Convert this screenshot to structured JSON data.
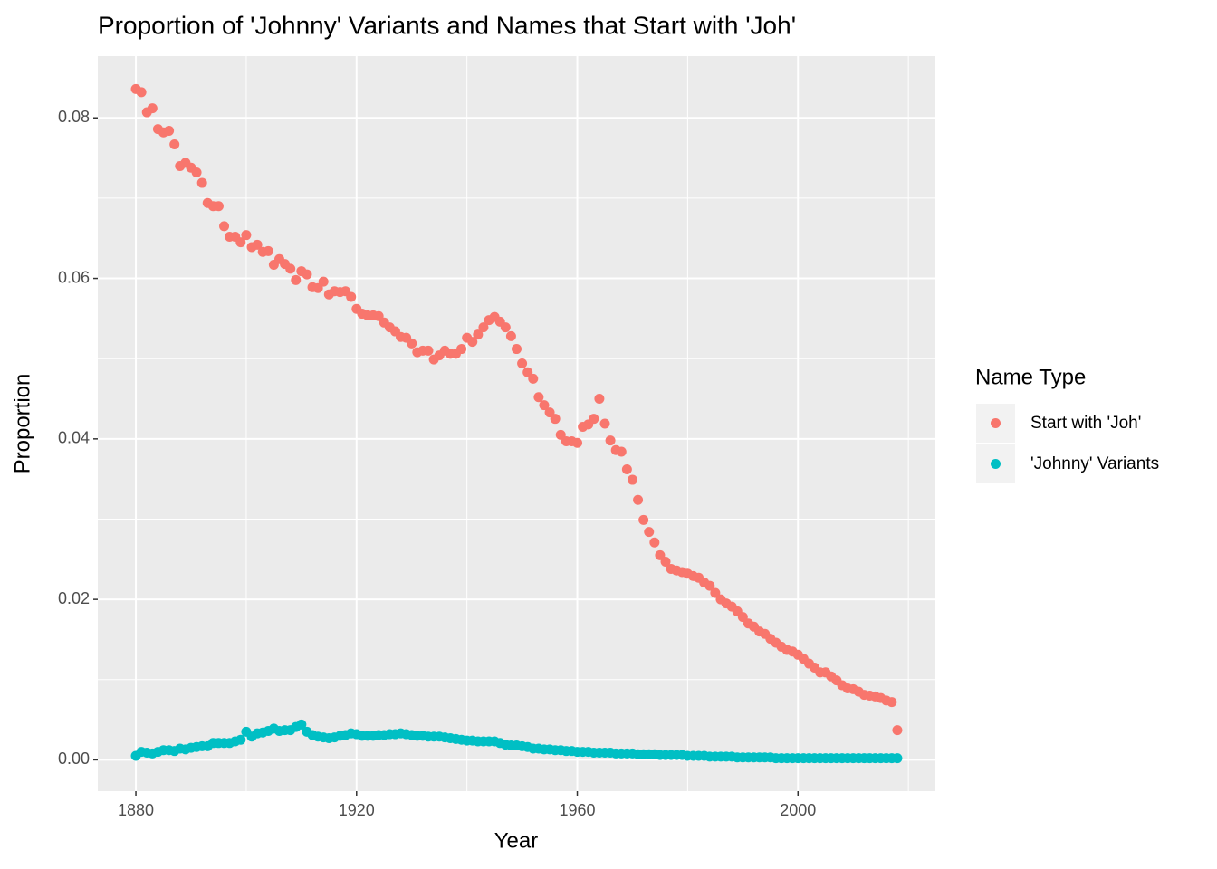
{
  "chart_data": {
    "type": "scatter",
    "title": "Proportion of 'Johnny' Variants and Names that Start with 'Joh'",
    "x_label": "Year",
    "y_label": "Proportion",
    "legend_title": "Name Type",
    "legend_position": "right",
    "grid": true,
    "xlim": [
      1873.1,
      2024.9
    ],
    "ylim": [
      -0.0039,
      0.0877
    ],
    "xticks": [
      1880,
      1920,
      1960,
      2000
    ],
    "minor_xticks": [
      1900,
      1940,
      1980,
      2020
    ],
    "yticks": [
      {
        "value": 0,
        "label": "0.00"
      },
      {
        "value": 0.02,
        "label": "0.02"
      },
      {
        "value": 0.04,
        "label": "0.04"
      },
      {
        "value": 0.06,
        "label": "0.06"
      },
      {
        "value": 0.08,
        "label": "0.08"
      }
    ],
    "minor_yticks": [
      0.01,
      0.03,
      0.05,
      0.07
    ],
    "x": [
      1880,
      1881,
      1882,
      1883,
      1884,
      1885,
      1886,
      1887,
      1888,
      1889,
      1890,
      1891,
      1892,
      1893,
      1894,
      1895,
      1896,
      1897,
      1898,
      1899,
      1900,
      1901,
      1902,
      1903,
      1904,
      1905,
      1906,
      1907,
      1908,
      1909,
      1910,
      1911,
      1912,
      1913,
      1914,
      1915,
      1916,
      1917,
      1918,
      1919,
      1920,
      1921,
      1922,
      1923,
      1924,
      1925,
      1926,
      1927,
      1928,
      1929,
      1930,
      1931,
      1932,
      1933,
      1934,
      1935,
      1936,
      1937,
      1938,
      1939,
      1940,
      1941,
      1942,
      1943,
      1944,
      1945,
      1946,
      1947,
      1948,
      1949,
      1950,
      1951,
      1952,
      1953,
      1954,
      1955,
      1956,
      1957,
      1958,
      1959,
      1960,
      1961,
      1962,
      1963,
      1964,
      1965,
      1966,
      1967,
      1968,
      1969,
      1970,
      1971,
      1972,
      1973,
      1974,
      1975,
      1976,
      1977,
      1978,
      1979,
      1980,
      1981,
      1982,
      1983,
      1984,
      1985,
      1986,
      1987,
      1988,
      1989,
      1990,
      1991,
      1992,
      1993,
      1994,
      1995,
      1996,
      1997,
      1998,
      1999,
      2000,
      2001,
      2002,
      2003,
      2004,
      2005,
      2006,
      2007,
      2008,
      2009,
      2010,
      2011,
      2012,
      2013,
      2014,
      2015,
      2016,
      2017,
      2018
    ],
    "series": [
      {
        "name": "Start with 'Joh'",
        "color": "#F8766D",
        "values": [
          0.0836,
          0.0832,
          0.0807,
          0.0812,
          0.0786,
          0.0782,
          0.0784,
          0.0767,
          0.074,
          0.0744,
          0.0738,
          0.0732,
          0.0719,
          0.0694,
          0.069,
          0.069,
          0.0665,
          0.0652,
          0.0652,
          0.0645,
          0.0654,
          0.0639,
          0.0642,
          0.0633,
          0.0634,
          0.0617,
          0.0624,
          0.0618,
          0.0612,
          0.0598,
          0.0609,
          0.0605,
          0.0589,
          0.0588,
          0.0596,
          0.058,
          0.0584,
          0.0583,
          0.0584,
          0.0577,
          0.0562,
          0.0556,
          0.0554,
          0.0554,
          0.0553,
          0.0545,
          0.0539,
          0.0534,
          0.0527,
          0.0526,
          0.0519,
          0.0508,
          0.051,
          0.051,
          0.0499,
          0.0504,
          0.051,
          0.0506,
          0.0506,
          0.0512,
          0.0526,
          0.0521,
          0.053,
          0.0539,
          0.0548,
          0.0552,
          0.0546,
          0.0539,
          0.0528,
          0.0512,
          0.0494,
          0.0483,
          0.0475,
          0.0452,
          0.0442,
          0.0433,
          0.0425,
          0.0405,
          0.0397,
          0.0397,
          0.0395,
          0.0415,
          0.0418,
          0.0425,
          0.045,
          0.0419,
          0.0398,
          0.0386,
          0.0384,
          0.0362,
          0.0349,
          0.0324,
          0.0299,
          0.0284,
          0.0271,
          0.0255,
          0.0247,
          0.0238,
          0.0236,
          0.0234,
          0.0232,
          0.0229,
          0.0227,
          0.0221,
          0.0217,
          0.0208,
          0.02,
          0.0195,
          0.0191,
          0.0185,
          0.0178,
          0.017,
          0.0166,
          0.016,
          0.0157,
          0.0151,
          0.0146,
          0.0141,
          0.0137,
          0.0135,
          0.0131,
          0.0126,
          0.012,
          0.0115,
          0.0109,
          0.0109,
          0.0104,
          0.0099,
          0.0093,
          0.0089,
          0.0088,
          0.0085,
          0.0081,
          0.008,
          0.0079,
          0.0077,
          0.0074,
          0.0072,
          0.0037
        ]
      },
      {
        "name": "'Johnny' Variants",
        "color": "#00BFC4",
        "values": [
          0.0005,
          0.001,
          0.0009,
          0.0008,
          0.001,
          0.0012,
          0.0012,
          0.0011,
          0.0014,
          0.0013,
          0.0015,
          0.0016,
          0.0017,
          0.0017,
          0.0021,
          0.0021,
          0.0021,
          0.0021,
          0.0023,
          0.0025,
          0.0035,
          0.0029,
          0.0033,
          0.0034,
          0.0036,
          0.0039,
          0.0036,
          0.0037,
          0.0037,
          0.0041,
          0.0044,
          0.0035,
          0.0031,
          0.0029,
          0.0028,
          0.0027,
          0.0028,
          0.003,
          0.0031,
          0.0033,
          0.0032,
          0.003,
          0.003,
          0.003,
          0.0031,
          0.0031,
          0.0032,
          0.0032,
          0.0033,
          0.0032,
          0.0031,
          0.003,
          0.003,
          0.0029,
          0.0029,
          0.0029,
          0.0028,
          0.0027,
          0.0026,
          0.0025,
          0.0024,
          0.0024,
          0.0023,
          0.0023,
          0.0023,
          0.0023,
          0.0021,
          0.0019,
          0.0018,
          0.0018,
          0.0017,
          0.0016,
          0.0014,
          0.0014,
          0.0013,
          0.0013,
          0.0012,
          0.0012,
          0.0011,
          0.0011,
          0.001,
          0.001,
          0.001,
          0.0009,
          0.0009,
          0.0009,
          0.0009,
          0.0008,
          0.0008,
          0.0008,
          0.0008,
          0.0007,
          0.0007,
          0.0007,
          0.0007,
          0.0006,
          0.0006,
          0.0006,
          0.0006,
          0.0006,
          0.0005,
          0.0005,
          0.0005,
          0.0005,
          0.0004,
          0.0004,
          0.0004,
          0.0004,
          0.0004,
          0.0003,
          0.0003,
          0.0003,
          0.0003,
          0.0003,
          0.0003,
          0.0003,
          0.0002,
          0.0002,
          0.0002,
          0.0002,
          0.0002,
          0.0002,
          0.0002,
          0.0002,
          0.0002,
          0.0002,
          0.0002,
          0.0002,
          0.0002,
          0.0002,
          0.0002,
          0.0002,
          0.0002,
          0.0002,
          0.0002,
          0.0002,
          0.0002,
          0.0002,
          0.0002
        ]
      }
    ]
  }
}
